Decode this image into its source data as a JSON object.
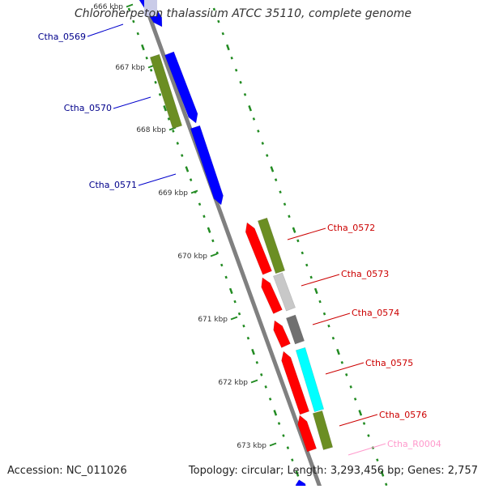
{
  "title": "Chloroherpeton thalassium ATCC 35110, complete genome",
  "footer": {
    "accession": "Accession: NC_011026",
    "summary": "Topology: circular; Length: 3,293,456 bp; Genes: 2,757"
  },
  "colors": {
    "forward_cds": "#0000ff",
    "reverse_cds": "#ff0000",
    "cog_green": "#6b8e23",
    "cog_light_gray": "#c8c8c8",
    "cog_dark_gray": "#707070",
    "cog_cyan": "#00ffff",
    "trna_label": "#ff99cc",
    "tick_green": "#228b22",
    "backbone": "#808080"
  },
  "kbp_ticks": [
    "666 kbp",
    "667 kbp",
    "668 kbp",
    "669 kbp",
    "670 kbp",
    "671 kbp",
    "672 kbp",
    "673 kbp"
  ],
  "genes": {
    "forward": [
      "Ctha_0569",
      "Ctha_0570",
      "Ctha_0571"
    ],
    "reverse": [
      "Ctha_0572",
      "Ctha_0573",
      "Ctha_0574",
      "Ctha_0575",
      "Ctha_0576"
    ],
    "rna": [
      "Ctha_R0004"
    ]
  }
}
